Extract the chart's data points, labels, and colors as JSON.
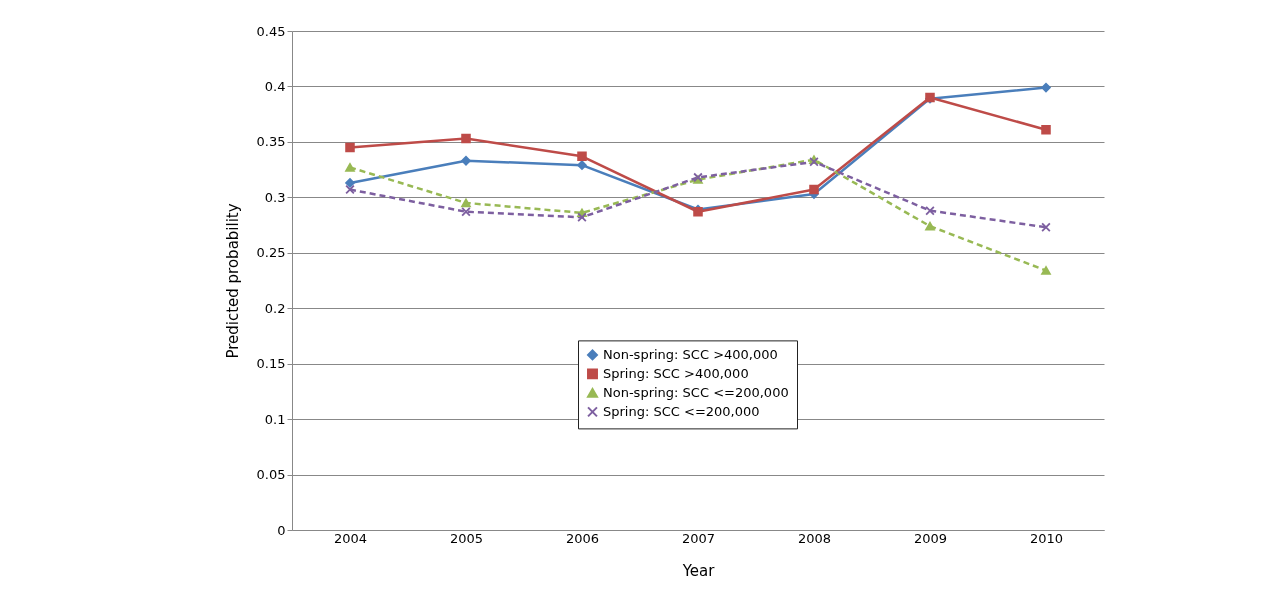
{
  "chart_data": {
    "type": "line",
    "xlabel": "Year",
    "ylabel": "Predicted probability",
    "categories": [
      "2004",
      "2005",
      "2006",
      "2007",
      "2008",
      "2009",
      "2010"
    ],
    "ylim": [
      0,
      0.45
    ],
    "yticks": [
      0,
      0.05,
      0.1,
      0.15,
      0.2,
      0.25,
      0.3,
      0.35,
      0.4,
      0.45
    ],
    "grid": "y",
    "legend": "bottom",
    "series": [
      {
        "name": "Non-spring: SCC >400,000",
        "color": "#4a7ebb",
        "marker": "diamond",
        "line_style": "solid",
        "values": [
          0.313,
          0.333,
          0.329,
          0.289,
          0.303,
          0.389,
          0.399
        ]
      },
      {
        "name": "Spring: SCC >400,000",
        "color": "#be4b48",
        "marker": "square",
        "line_style": "solid",
        "values": [
          0.345,
          0.353,
          0.337,
          0.287,
          0.307,
          0.39,
          0.361
        ]
      },
      {
        "name": "Non-spring: SCC <=200,000",
        "color": "#98b954",
        "marker": "triangle",
        "line_style": "dashed",
        "values": [
          0.327,
          0.295,
          0.286,
          0.316,
          0.334,
          0.274,
          0.234
        ]
      },
      {
        "name": "Spring: SCC <=200,000",
        "color": "#7d5fa0",
        "marker": "cross",
        "line_style": "dashed",
        "values": [
          0.307,
          0.287,
          0.282,
          0.318,
          0.332,
          0.288,
          0.273
        ]
      }
    ]
  }
}
